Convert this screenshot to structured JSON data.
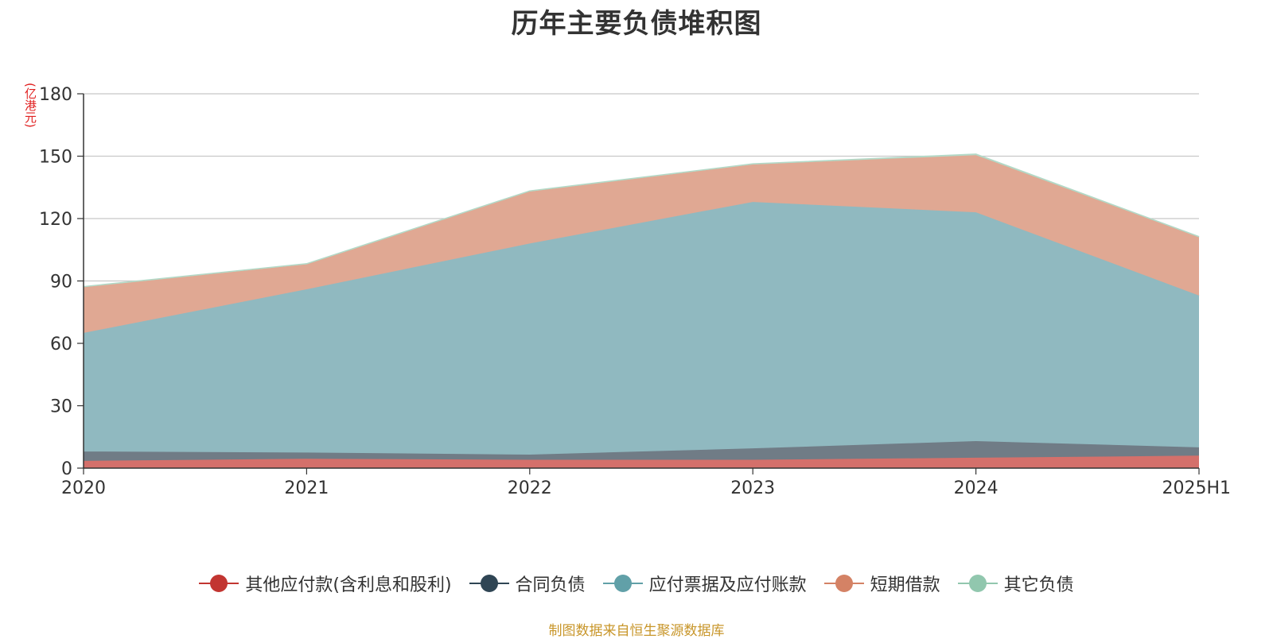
{
  "chart_data": {
    "type": "area",
    "stacked": true,
    "title": "历年主要负债堆积图",
    "ylabel": "(亿港元)",
    "xlabel": "",
    "categories": [
      "2020",
      "2021",
      "2022",
      "2023",
      "2024",
      "2025H1"
    ],
    "ylim": [
      0,
      180
    ],
    "yticks": [
      "0",
      "30",
      "60",
      "90",
      "120",
      "150",
      "180"
    ],
    "grid": true,
    "legend_position": "bottom",
    "series": [
      {
        "name": "其他应付款(含利息和股利)",
        "color": "#c23531",
        "fill": "#d4706b",
        "values": [
          3.5,
          4.5,
          4.0,
          4.0,
          5.0,
          6.0
        ]
      },
      {
        "name": "合同负债",
        "color": "#2f4554",
        "fill": "#707c86",
        "values": [
          4.5,
          3.0,
          2.5,
          5.5,
          8.0,
          4.0
        ]
      },
      {
        "name": "应付票据及应付账款",
        "color": "#61a0a8",
        "fill": "#90b9c0",
        "values": [
          57.0,
          78.5,
          101.5,
          118.5,
          110.0,
          73.0
        ]
      },
      {
        "name": "短期借款",
        "color": "#d48265",
        "fill": "#e0a893",
        "values": [
          22.0,
          12.0,
          25.0,
          18.0,
          27.5,
          28.0
        ]
      },
      {
        "name": "其它负债",
        "color": "#91c7ae",
        "fill": "#b3d9c7",
        "values": [
          0.3,
          0.3,
          0.3,
          0.3,
          0.5,
          0.3
        ]
      }
    ]
  },
  "footer": {
    "source": "制图数据来自恒生聚源数据库"
  }
}
